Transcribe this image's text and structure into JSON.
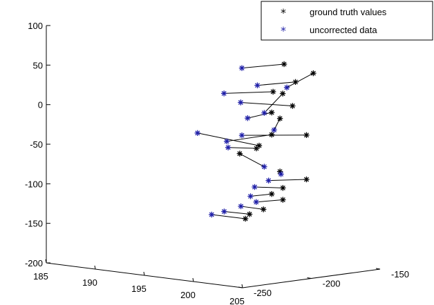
{
  "chart_data": {
    "type": "scatter",
    "subtype": "3d",
    "title": "",
    "xlabel": "",
    "ylabel": "",
    "zlabel": "",
    "z_axis": {
      "ticks": [
        100,
        50,
        0,
        -50,
        -100,
        -150,
        -200
      ],
      "tick_labels": [
        "100",
        "50",
        "0",
        "-50",
        "-100",
        "-150",
        "-200"
      ],
      "range": [
        -200,
        100
      ]
    },
    "x_axis": {
      "ticks": [
        185,
        190,
        195,
        200,
        205
      ],
      "tick_labels": [
        "185",
        "190",
        "195",
        "200",
        "205"
      ],
      "range": [
        185,
        205
      ]
    },
    "y_axis": {
      "ticks": [
        -250,
        -200,
        -150
      ],
      "tick_labels": [
        "-250",
        "-200",
        "-150"
      ],
      "range": [
        -250,
        -150
      ]
    },
    "grid": false,
    "legend_position": "top-right",
    "series": [
      {
        "name": "ground truth values",
        "marker": "*",
        "color": "#000000",
        "points": [
          [
            199,
            -177,
            56
          ],
          [
            201,
            -170,
            46
          ],
          [
            201,
            -183,
            38
          ],
          [
            199,
            -185,
            23
          ],
          [
            199,
            -178,
            19
          ],
          [
            200,
            -178,
            5
          ],
          [
            199,
            -186,
            -3
          ],
          [
            199,
            -180,
            -12
          ],
          [
            201,
            -175,
            -31
          ],
          [
            199,
            -186,
            -31
          ],
          [
            198,
            -188,
            -46
          ],
          [
            198,
            -190,
            -49
          ],
          [
            197,
            -195,
            -56
          ],
          [
            199,
            -180,
            -79
          ],
          [
            201,
            -175,
            -87
          ],
          [
            200,
            -185,
            -97
          ],
          [
            199,
            -186,
            -106
          ],
          [
            200,
            -185,
            -112
          ],
          [
            199,
            -192,
            -124
          ],
          [
            198,
            -195,
            -131
          ],
          [
            198,
            -198,
            -136
          ]
        ]
      },
      {
        "name": "uncorrected data",
        "marker": "*",
        "color": "#1f1fa8",
        "points": [
          [
            194,
            -172,
            42
          ],
          [
            196,
            -175,
            24
          ],
          [
            199,
            -175,
            26
          ],
          [
            194,
            -185,
            13
          ],
          [
            195,
            -180,
            2
          ],
          [
            196,
            -170,
            -12
          ],
          [
            195,
            -175,
            -19
          ],
          [
            197,
            -170,
            -32
          ],
          [
            194,
            -172,
            -43
          ],
          [
            192,
            -190,
            -39
          ],
          [
            194,
            -183,
            -48
          ],
          [
            194,
            -182,
            -56
          ],
          [
            196,
            -170,
            -80
          ],
          [
            197,
            -165,
            -89
          ],
          [
            197,
            -174,
            -95
          ],
          [
            196,
            -177,
            -104
          ],
          [
            196,
            -180,
            -115
          ],
          [
            197,
            -183,
            -120
          ],
          [
            196,
            -187,
            -126
          ],
          [
            195,
            -192,
            -133
          ],
          [
            194,
            -194,
            -138
          ]
        ]
      }
    ],
    "pairs": [
      [
        0,
        0
      ],
      [
        1,
        2
      ],
      [
        2,
        1
      ],
      [
        3,
        3
      ],
      [
        4,
        5
      ],
      [
        5,
        4
      ],
      [
        6,
        6
      ],
      [
        7,
        7
      ],
      [
        8,
        8
      ],
      [
        9,
        10
      ],
      [
        10,
        9
      ],
      [
        11,
        11
      ],
      [
        12,
        12
      ],
      [
        13,
        13
      ],
      [
        14,
        14
      ],
      [
        15,
        15
      ],
      [
        16,
        16
      ],
      [
        17,
        17
      ],
      [
        18,
        18
      ],
      [
        19,
        19
      ],
      [
        20,
        20
      ]
    ]
  },
  "legend": {
    "entries": [
      {
        "label": "ground truth values",
        "color": "#000000",
        "marker": "*"
      },
      {
        "label": "uncorrected data",
        "color": "#1f1fa8",
        "marker": "*"
      }
    ]
  }
}
